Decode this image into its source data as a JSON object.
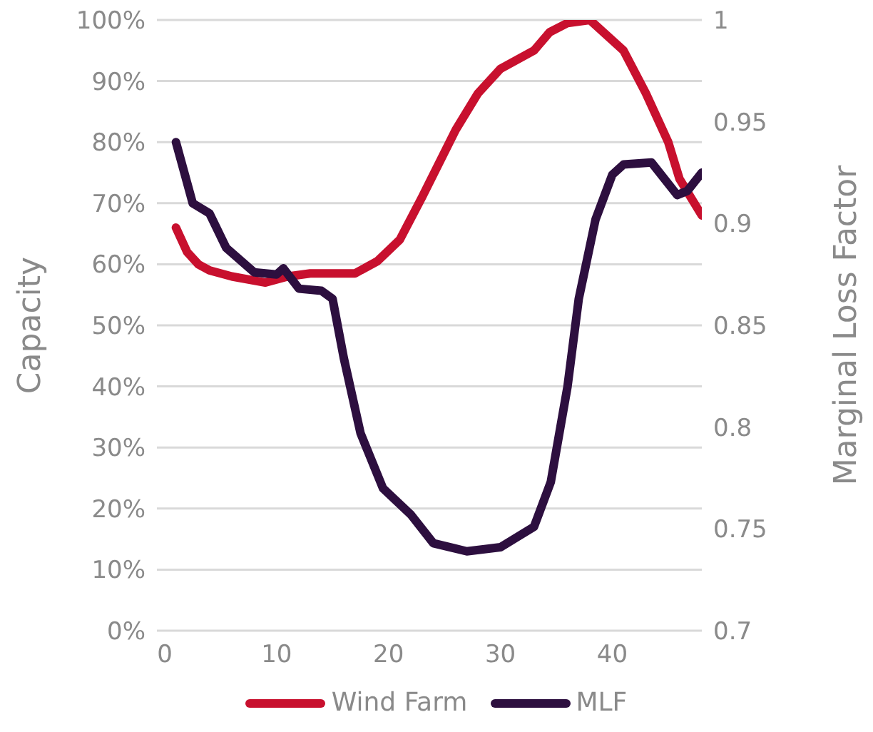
{
  "chart_data": {
    "type": "line",
    "ylabel": "Capacity",
    "y2label": "Marginal Loss Factor",
    "xlim": [
      -0.7,
      48
    ],
    "xticks": [
      0,
      10,
      20,
      30,
      40
    ],
    "ylim": [
      0,
      100
    ],
    "yticks": [
      {
        "value": 0,
        "label": "0%"
      },
      {
        "value": 10,
        "label": "10%"
      },
      {
        "value": 20,
        "label": "20%"
      },
      {
        "value": 30,
        "label": "30%"
      },
      {
        "value": 40,
        "label": "40%"
      },
      {
        "value": 50,
        "label": "50%"
      },
      {
        "value": 60,
        "label": "60%"
      },
      {
        "value": 70,
        "label": "70%"
      },
      {
        "value": 80,
        "label": "80%"
      },
      {
        "value": 90,
        "label": "90%"
      },
      {
        "value": 100,
        "label": "100%"
      }
    ],
    "y2lim": [
      0.7,
      1
    ],
    "y2ticks": [
      0.7,
      0.75,
      0.8,
      0.85,
      0.9,
      0.95,
      1
    ],
    "grid": "y",
    "legend": "bottom",
    "marker": "none",
    "line_style": "solid",
    "series": [
      {
        "name": "Wind Farm",
        "color": "#c8102e",
        "x": [
          1,
          2,
          3,
          4,
          6,
          9,
          11,
          13,
          15,
          17,
          19,
          21,
          23,
          26,
          28,
          30,
          33,
          34.4,
          36,
          38,
          41,
          43,
          45,
          46,
          48
        ],
        "values": [
          66,
          62,
          60,
          59,
          58,
          57,
          58,
          58.5,
          58.5,
          58.5,
          60.5,
          64,
          71,
          82,
          88,
          92,
          95,
          98,
          99.5,
          100,
          95,
          88,
          80,
          74,
          68
        ]
      },
      {
        "name": "MLF",
        "color": "#2d0f3f",
        "axis": "y2",
        "x": [
          1,
          2.5,
          4,
          5.5,
          8,
          10,
          10.6,
          12,
          14,
          15,
          16,
          17.5,
          19.5,
          22,
          24,
          27,
          30,
          33,
          34.5,
          36,
          37,
          38.5,
          40,
          41,
          43.5,
          45.8,
          46.7,
          48
        ],
        "values": [
          0.94,
          0.91,
          0.905,
          0.888,
          0.876,
          0.875,
          0.878,
          0.868,
          0.867,
          0.863,
          0.834,
          0.797,
          0.77,
          0.757,
          0.743,
          0.739,
          0.741,
          0.751,
          0.773,
          0.82,
          0.863,
          0.902,
          0.924,
          0.929,
          0.93,
          0.914,
          0.916,
          0.925
        ]
      }
    ]
  }
}
